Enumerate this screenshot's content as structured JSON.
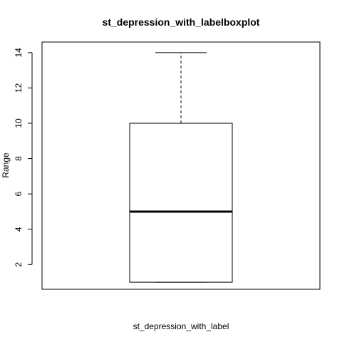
{
  "chart_data": {
    "type": "boxplot",
    "title": "st_depression_with_labelboxplot",
    "xlabel": "st_depression_with_label",
    "ylabel": "Range",
    "ylim": [
      0.6,
      14.6
    ],
    "yticks": [
      2,
      4,
      6,
      8,
      10,
      12,
      14
    ],
    "grid": false,
    "boxes": [
      {
        "whisker_low": 1,
        "q1": 1,
        "median": 5,
        "q3": 10,
        "whisker_high": 14
      }
    ]
  }
}
